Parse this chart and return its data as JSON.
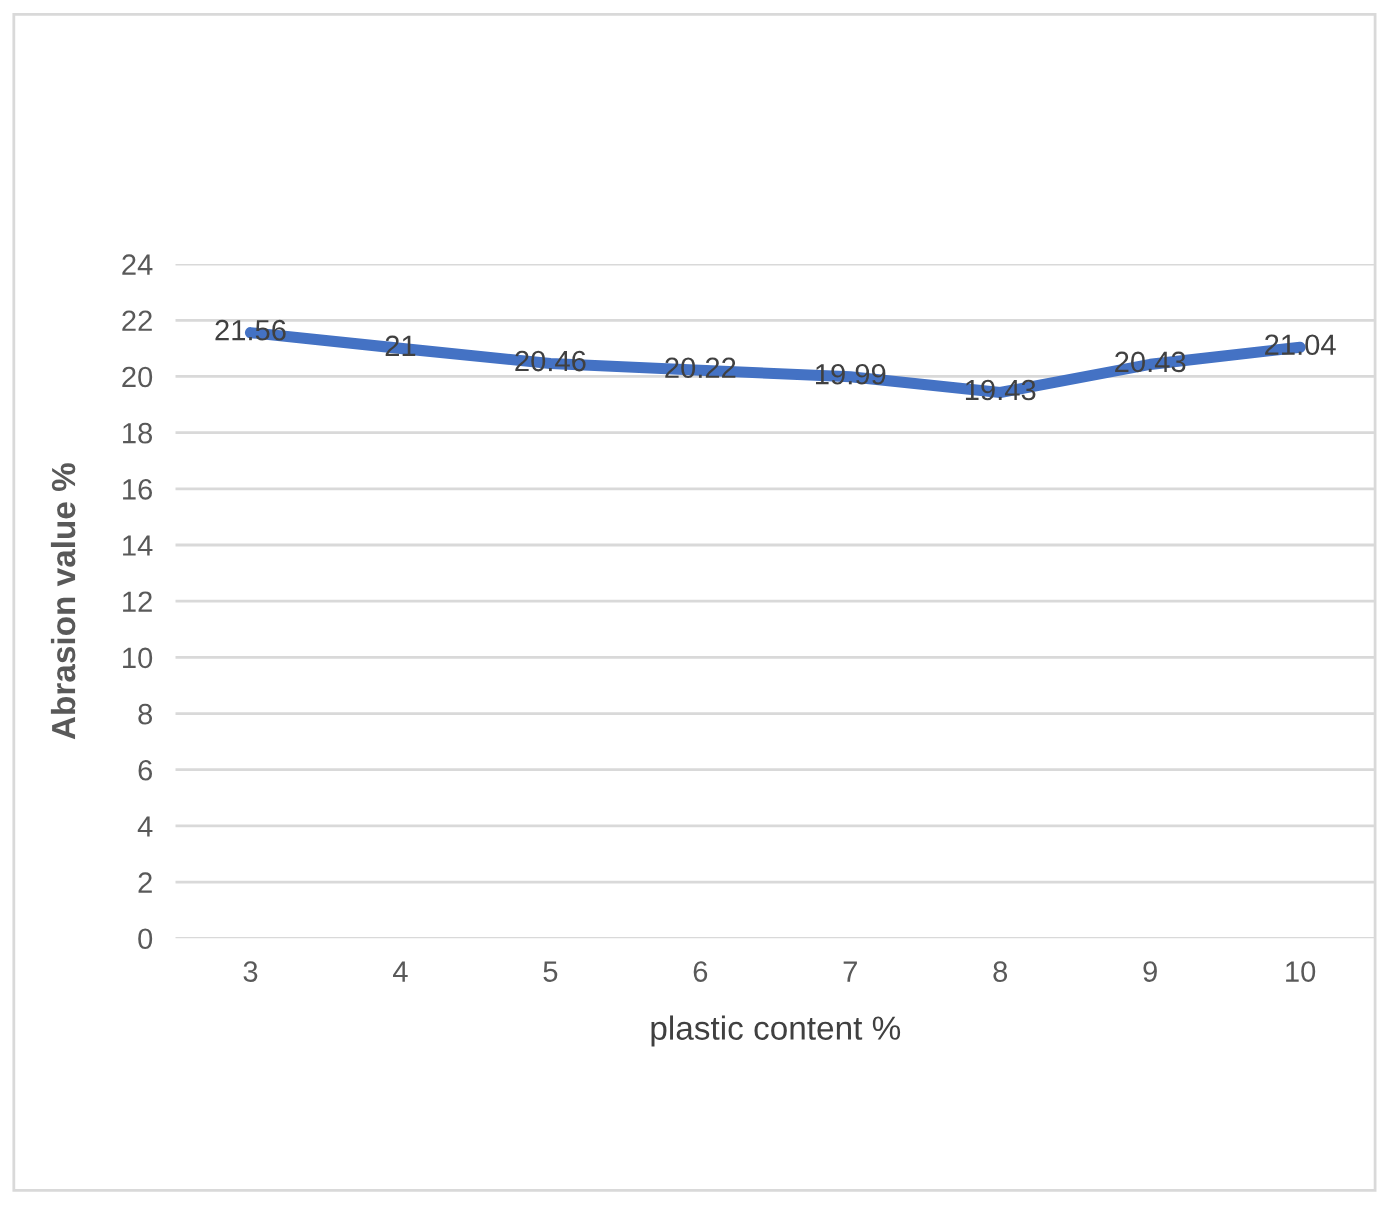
{
  "chart_data": {
    "type": "line",
    "xlabel": "plastic content %",
    "ylabel": "Abrasion value %",
    "categories": [
      "3",
      "4",
      "5",
      "6",
      "7",
      "8",
      "9",
      "10"
    ],
    "series": [
      {
        "color": "#4472c4",
        "values": [
          21.56,
          21,
          20.46,
          20.22,
          19.99,
          19.43,
          20.43,
          21.04
        ]
      }
    ],
    "ylim": [
      0,
      24
    ],
    "yticks": [
      0,
      2,
      4,
      6,
      8,
      10,
      12,
      14,
      16,
      18,
      20,
      22,
      24
    ],
    "grid": "y",
    "data_labels": true,
    "legend": false
  }
}
